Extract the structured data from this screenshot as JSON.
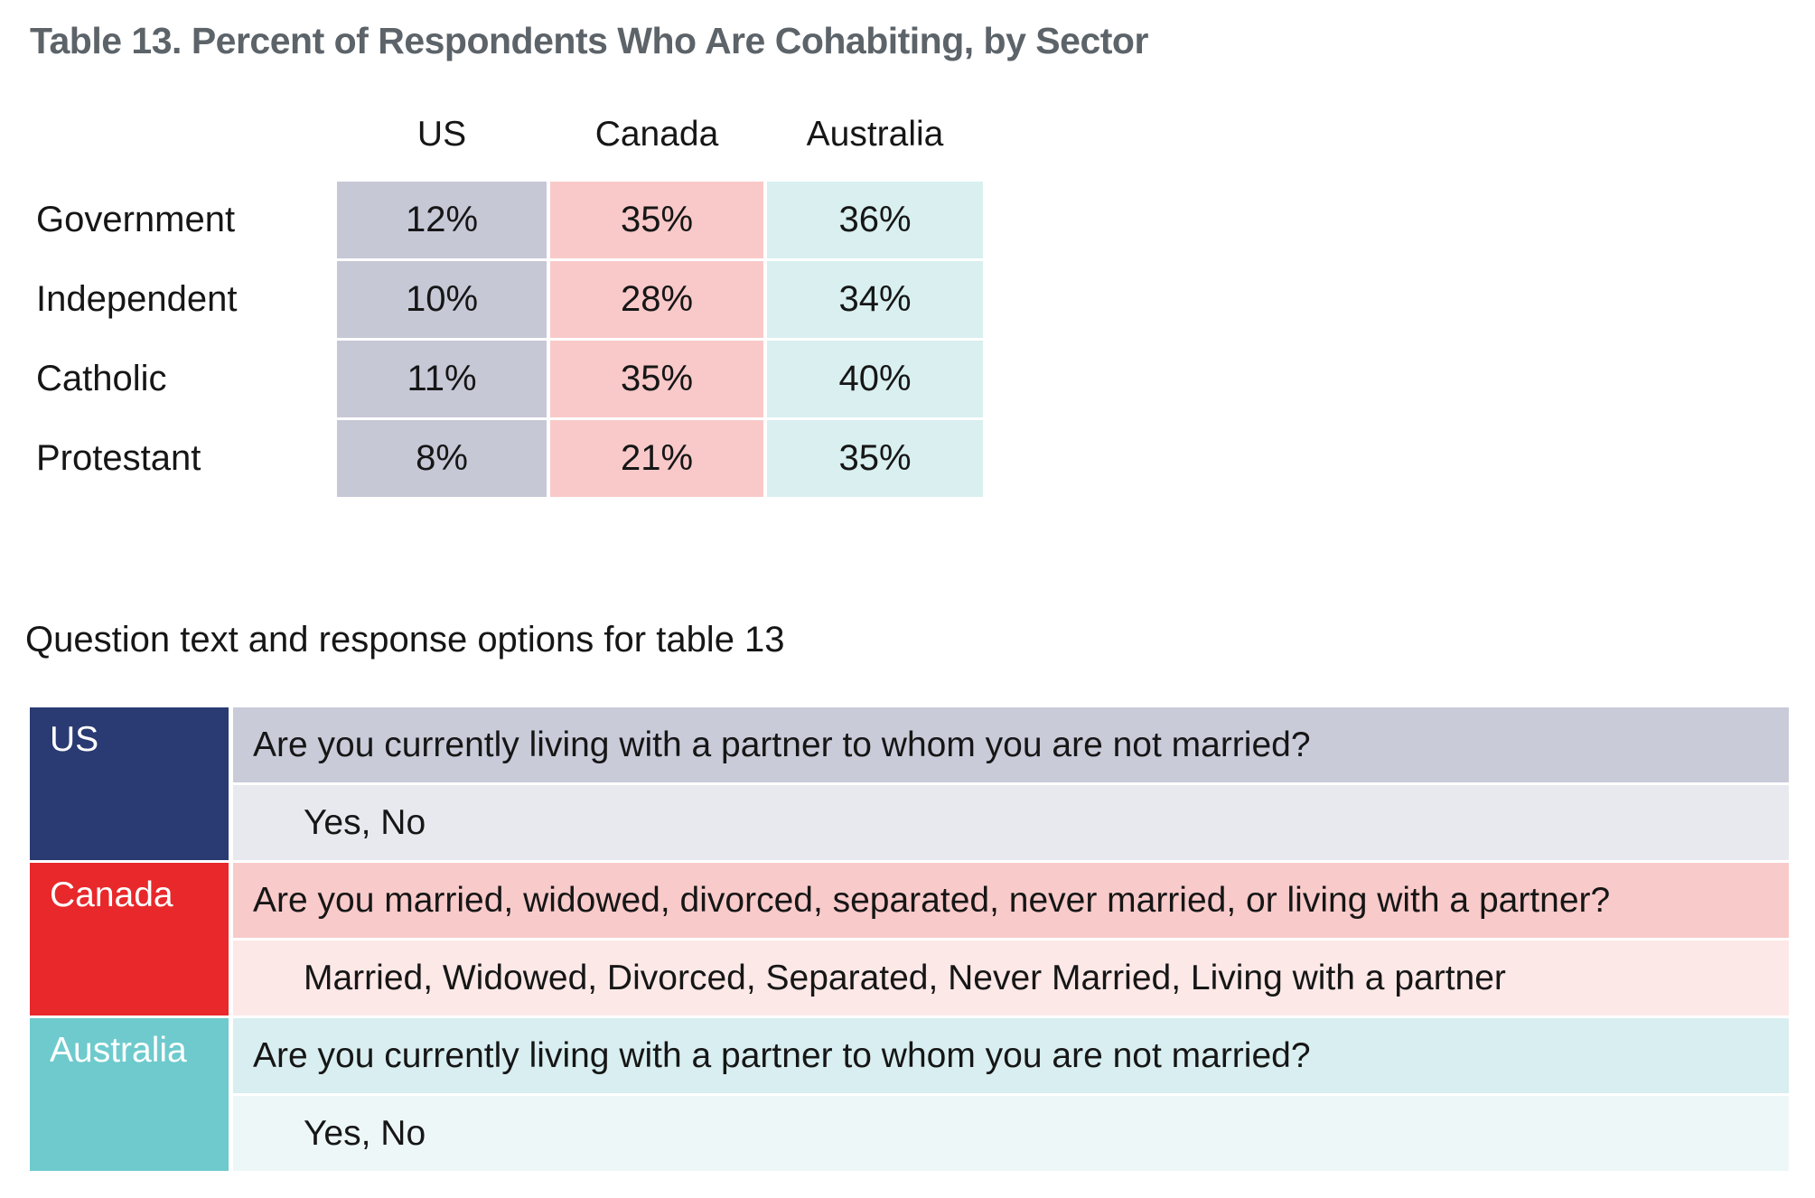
{
  "title": "Table 13. Percent of Respondents Who Are Cohabiting, by Sector",
  "section_heading": "Question text and response options for table 13",
  "main_table": {
    "columns": [
      "US",
      "Canada",
      "Australia"
    ],
    "rows": [
      {
        "label": "Government",
        "values": [
          "12%",
          "35%",
          "36%"
        ]
      },
      {
        "label": "Independent",
        "values": [
          "10%",
          "28%",
          "34%"
        ]
      },
      {
        "label": "Catholic",
        "values": [
          "11%",
          "35%",
          "40%"
        ]
      },
      {
        "label": "Protestant",
        "values": [
          "8%",
          "21%",
          "35%"
        ]
      }
    ],
    "column_colors": {
      "US": "#c6c8d6",
      "Canada": "#f9c9c9",
      "Australia": "#d9eff0"
    }
  },
  "question_table": {
    "entries": [
      {
        "country": "US",
        "question": "Are you currently living with a partner to whom you are not married?",
        "responses": "Yes, No",
        "header_color": "#2a3a72",
        "question_bg": "#c9cbd9",
        "response_bg": "#e8e9ef"
      },
      {
        "country": "Canada",
        "question": "Are you married, widowed, divorced, separated, never married, or living with a partner?",
        "responses": "Married, Widowed, Divorced, Separated, Never Married, Living with a partner",
        "header_color": "#e8282b",
        "question_bg": "#f9caca",
        "response_bg": "#fce8e7"
      },
      {
        "country": "Australia",
        "question": "Are you currently living with a partner to whom you are not married?",
        "responses": "Yes, No",
        "header_color": "#6ecacd",
        "question_bg": "#d8eef0",
        "response_bg": "#edf7f8"
      }
    ]
  },
  "text_color": "#161616",
  "title_color": "#5c6369"
}
